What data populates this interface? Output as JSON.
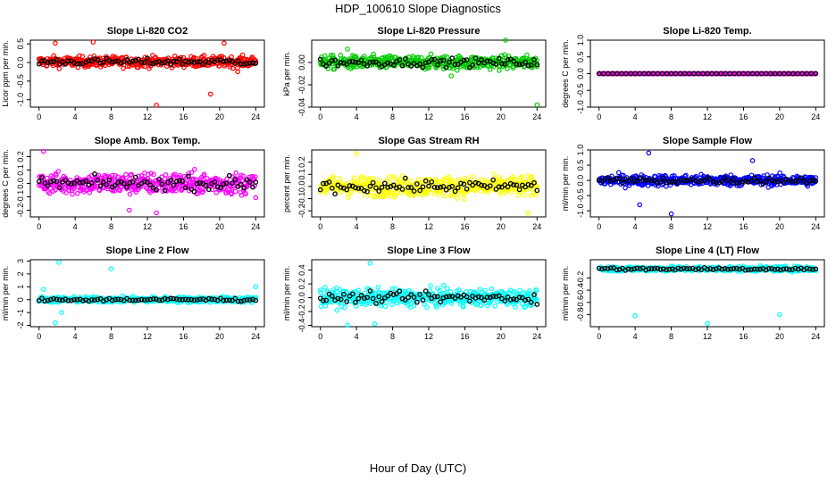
{
  "figure": {
    "title": "HDP_100610  Slope Diagnostics",
    "xlabel": "Hour of Day (UTC)"
  },
  "chart_data": [
    {
      "type": "scatter",
      "title": "Slope Li-820 CO2",
      "ylabel": "Licor ppm per min.",
      "color": "#ff0000",
      "xlim": [
        0,
        24
      ],
      "ylim": [
        -1.2,
        0.6
      ],
      "xticks": [
        "0",
        "4",
        "8",
        "12",
        "16",
        "20",
        "24"
      ],
      "yticks": [
        -1.0,
        -0.5,
        0.0,
        0.5
      ],
      "ytick_labels": [
        "-1.0",
        "-0.5",
        "0.0",
        "0.5"
      ],
      "spread": 0.14,
      "center": 0.02,
      "outliers": [
        [
          1.8,
          0.52
        ],
        [
          6.0,
          0.55
        ],
        [
          13.0,
          -1.15
        ],
        [
          19.0,
          -0.85
        ],
        [
          20.5,
          0.52
        ],
        [
          22.0,
          -0.25
        ]
      ]
    },
    {
      "type": "scatter",
      "title": "Slope Li-820 Pressure",
      "ylabel": "kPa per min.",
      "color": "#00cc00",
      "xlim": [
        0,
        24
      ],
      "ylim": [
        -0.04,
        0.02
      ],
      "xticks": [
        "0",
        "4",
        "8",
        "12",
        "16",
        "20",
        "24"
      ],
      "yticks": [
        -0.04,
        -0.02,
        0.0
      ],
      "ytick_labels": [
        "-0.04",
        "-0.02",
        "0.00"
      ],
      "spread": 0.006,
      "center": 0.0,
      "outliers": [
        [
          3.0,
          0.012
        ],
        [
          14.5,
          -0.012
        ],
        [
          20.5,
          0.021
        ],
        [
          24.0,
          -0.038
        ]
      ]
    },
    {
      "type": "scatter",
      "title": "Slope Li-820 Temp.",
      "ylabel": "degrees C per min.",
      "color": "#ff00ff",
      "xlim": [
        0,
        24
      ],
      "ylim": [
        -1.0,
        1.0
      ],
      "xticks": [
        "0",
        "4",
        "8",
        "12",
        "16",
        "20",
        "24"
      ],
      "yticks": [
        -1.0,
        -0.5,
        0.0,
        0.5,
        1.0
      ],
      "ytick_labels": [
        "-1.0",
        "-0.5",
        "0.0",
        "0.5",
        "1.0"
      ],
      "spread": 0.0,
      "center": 0.0,
      "outliers": []
    },
    {
      "type": "scatter",
      "title": "Slope Amb. Box Temp.",
      "ylabel": "degrees C per min.",
      "color": "#ff00ff",
      "xlim": [
        0,
        24
      ],
      "ylim": [
        -0.25,
        0.25
      ],
      "xticks": [
        "0",
        "4",
        "8",
        "12",
        "16",
        "20",
        "24"
      ],
      "yticks": [
        -0.2,
        -0.1,
        0.0,
        0.1,
        0.2
      ],
      "ytick_labels": [
        "-0.2",
        "-0.1",
        "0.0",
        "0.1",
        "0.2"
      ],
      "spread": 0.08,
      "center": 0.0,
      "outliers": [
        [
          0.5,
          0.24
        ],
        [
          13.0,
          -0.22
        ],
        [
          10.0,
          -0.2
        ]
      ]
    },
    {
      "type": "scatter",
      "title": "Slope Gas Stream RH",
      "ylabel": "percent per min.",
      "color": "#ffff00",
      "xlim": [
        0,
        24
      ],
      "ylim": [
        -0.25,
        0.3
      ],
      "xticks": [
        "0",
        "4",
        "8",
        "12",
        "16",
        "20",
        "24"
      ],
      "yticks": [
        -0.2,
        -0.1,
        0.0,
        0.1,
        0.2
      ],
      "ytick_labels": [
        "-0.2",
        "-0.1",
        "0.0",
        "0.1",
        "0.2"
      ],
      "spread": 0.08,
      "center": 0.0,
      "outliers": [
        [
          4.0,
          0.27
        ],
        [
          23.0,
          -0.22
        ]
      ]
    },
    {
      "type": "scatter",
      "title": "Slope Sample Flow",
      "ylabel": "ml/min per min.",
      "color": "#0000ff",
      "xlim": [
        0,
        24
      ],
      "ylim": [
        -1.2,
        1.0
      ],
      "xticks": [
        "0",
        "4",
        "8",
        "12",
        "16",
        "20",
        "24"
      ],
      "yticks": [
        -1.0,
        -0.5,
        0.0,
        0.5,
        1.0
      ],
      "ytick_labels": [
        "-1.0",
        "-0.5",
        "0.0",
        "0.5",
        "1.0"
      ],
      "spread": 0.18,
      "center": 0.0,
      "outliers": [
        [
          5.5,
          0.9
        ],
        [
          8.0,
          -1.1
        ],
        [
          4.5,
          -0.8
        ],
        [
          17.0,
          0.65
        ]
      ]
    },
    {
      "type": "scatter",
      "title": "Slope Line 2 Flow",
      "ylabel": "ml/min per min.",
      "color": "#00ffff",
      "xlim": [
        0,
        24
      ],
      "ylim": [
        -2.1,
        3.1
      ],
      "xticks": [
        "0",
        "4",
        "8",
        "12",
        "16",
        "20",
        "24"
      ],
      "yticks": [
        -2,
        -1,
        0,
        1,
        2,
        3
      ],
      "ytick_labels": [
        "-2",
        "-1",
        "0",
        "1",
        "2",
        "3"
      ],
      "spread": 0.22,
      "center": 0.0,
      "outliers": [
        [
          2.2,
          2.9
        ],
        [
          8.0,
          2.4
        ],
        [
          1.8,
          -1.8
        ],
        [
          2.5,
          -1.0
        ],
        [
          0.5,
          0.8
        ],
        [
          24.0,
          1.0
        ]
      ]
    },
    {
      "type": "scatter",
      "title": "Slope Line 3 Flow",
      "ylabel": "ml/min per min.",
      "color": "#00ffff",
      "xlim": [
        0,
        24
      ],
      "ylim": [
        -0.42,
        0.55
      ],
      "xticks": [
        "0",
        "4",
        "8",
        "12",
        "16",
        "20",
        "24"
      ],
      "yticks": [
        -0.4,
        -0.2,
        0.0,
        0.2,
        0.4
      ],
      "ytick_labels": [
        "-0.4",
        "-0.2",
        "0.0",
        "0.2",
        "0.4"
      ],
      "spread": 0.12,
      "center": 0.0,
      "outliers": [
        [
          5.5,
          0.5
        ],
        [
          3.0,
          -0.4
        ],
        [
          6.0,
          -0.38
        ]
      ]
    },
    {
      "type": "scatter",
      "title": "Slope Line 4 (LT) Flow",
      "ylabel": "ml/min per min.",
      "color": "#00ffff",
      "xlim": [
        0,
        24
      ],
      "ylim": [
        -1.0,
        0.1
      ],
      "xticks": [
        "0",
        "4",
        "8",
        "12",
        "16",
        "20",
        "24"
      ],
      "yticks": [
        -0.8,
        -0.6,
        -0.4,
        -0.2
      ],
      "ytick_labels": [
        "-0.8",
        "-0.6",
        "-0.4",
        "-0.2"
      ],
      "spread": 0.04,
      "center": -0.05,
      "outliers": [
        [
          4.0,
          -0.82
        ],
        [
          12.0,
          -0.95
        ],
        [
          20.0,
          -0.8
        ]
      ]
    }
  ]
}
